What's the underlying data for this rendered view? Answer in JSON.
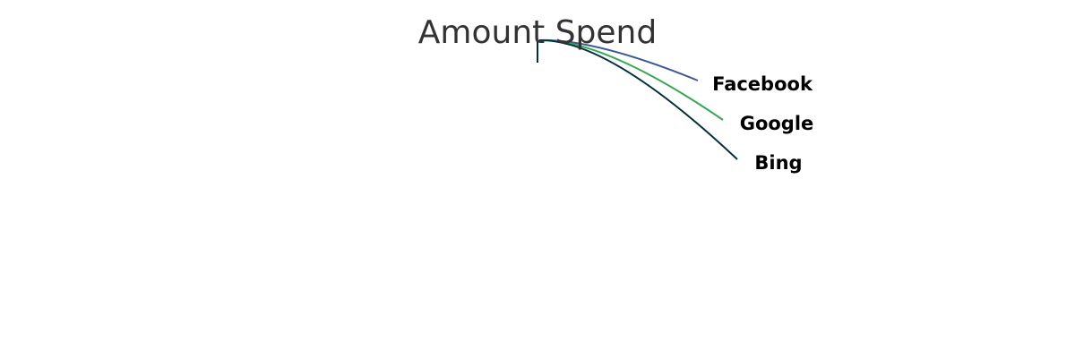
{
  "chart_data": {
    "type": "pie",
    "title": "Amount Spend",
    "series": [
      {
        "name": "Facebook",
        "color": "#3b5998"
      },
      {
        "name": "Google",
        "color": "#34a853"
      },
      {
        "name": "Bing",
        "color": "#00303f"
      }
    ],
    "legend": "none",
    "grid": false
  }
}
